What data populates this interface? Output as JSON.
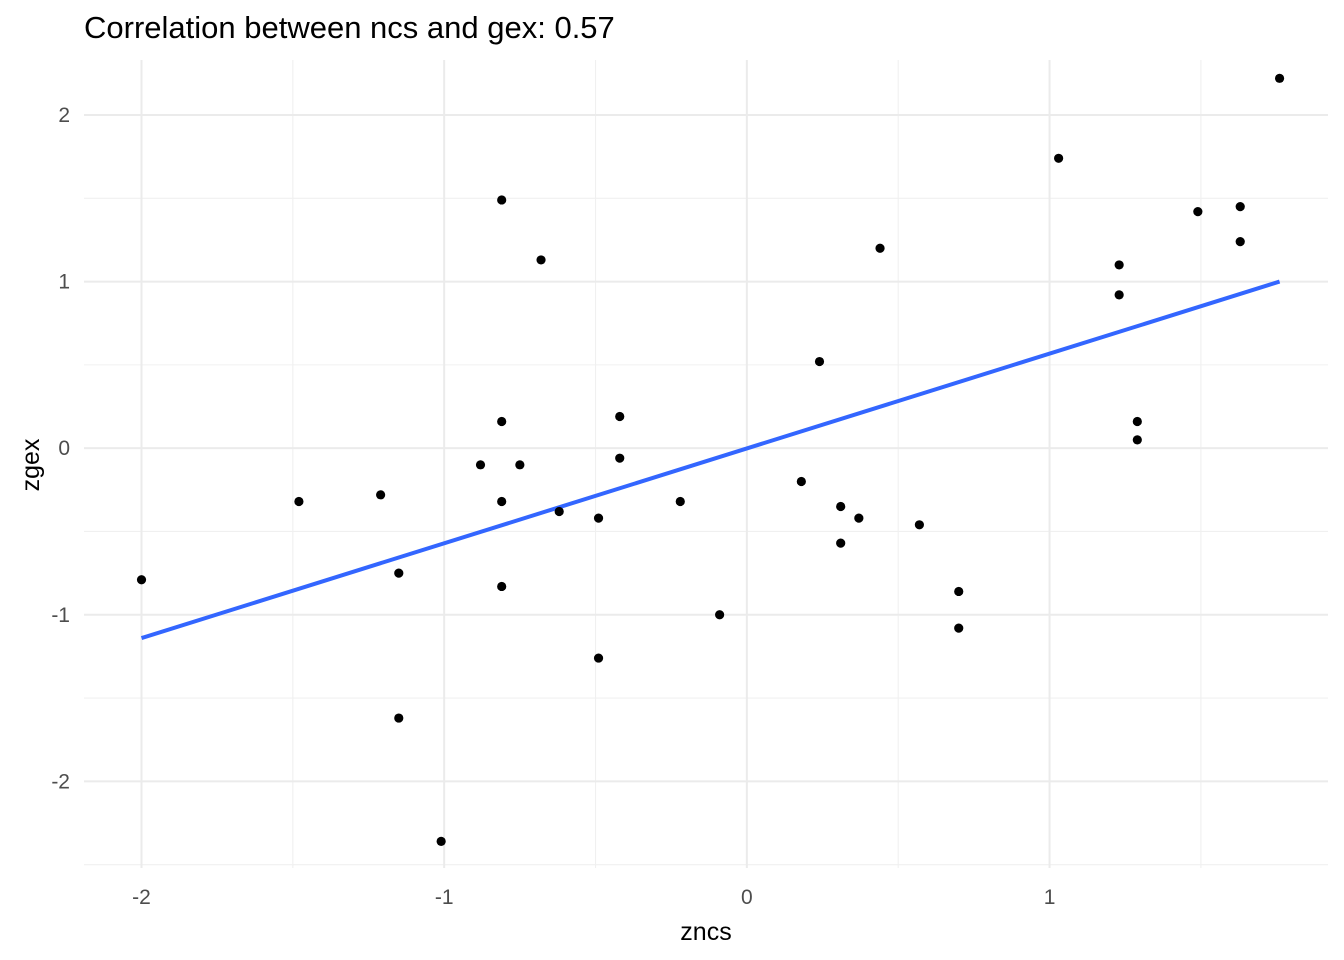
{
  "chart_data": {
    "type": "scatter",
    "title": "Correlation between ncs and gex: 0.57",
    "xlabel": "zncs",
    "ylabel": "zgex",
    "xlim": [
      -2.19,
      1.92
    ],
    "ylim": [
      -2.52,
      2.33
    ],
    "x_ticks": [
      -2,
      -1,
      0,
      1
    ],
    "x_tick_labels": [
      "-2",
      "-1",
      "0",
      "1"
    ],
    "y_ticks": [
      -2,
      -1,
      0,
      1,
      2
    ],
    "y_tick_labels": [
      "-2",
      "-1",
      "0",
      "1",
      "2"
    ],
    "grid": true,
    "point_color": "#000000",
    "points": [
      {
        "x": -2.0,
        "y": -0.79
      },
      {
        "x": -1.48,
        "y": -0.32
      },
      {
        "x": -1.21,
        "y": -0.28
      },
      {
        "x": -1.15,
        "y": -0.75
      },
      {
        "x": -1.15,
        "y": -1.62
      },
      {
        "x": -1.01,
        "y": -2.36
      },
      {
        "x": -0.88,
        "y": -0.1
      },
      {
        "x": -0.81,
        "y": 1.49
      },
      {
        "x": -0.81,
        "y": 0.16
      },
      {
        "x": -0.81,
        "y": -0.32
      },
      {
        "x": -0.81,
        "y": -0.83
      },
      {
        "x": -0.75,
        "y": -0.1
      },
      {
        "x": -0.68,
        "y": 1.13
      },
      {
        "x": -0.62,
        "y": -0.38
      },
      {
        "x": -0.49,
        "y": -0.42
      },
      {
        "x": -0.49,
        "y": -1.26
      },
      {
        "x": -0.42,
        "y": 0.19
      },
      {
        "x": -0.42,
        "y": -0.06
      },
      {
        "x": -0.22,
        "y": -0.32
      },
      {
        "x": -0.09,
        "y": -1.0
      },
      {
        "x": 0.18,
        "y": -0.2
      },
      {
        "x": 0.24,
        "y": 0.52
      },
      {
        "x": 0.31,
        "y": -0.35
      },
      {
        "x": 0.31,
        "y": -0.57
      },
      {
        "x": 0.37,
        "y": -0.42
      },
      {
        "x": 0.44,
        "y": 1.2
      },
      {
        "x": 0.57,
        "y": -0.46
      },
      {
        "x": 0.7,
        "y": -0.86
      },
      {
        "x": 0.7,
        "y": -1.08
      },
      {
        "x": 1.03,
        "y": 1.74
      },
      {
        "x": 1.23,
        "y": 1.1
      },
      {
        "x": 1.23,
        "y": 0.92
      },
      {
        "x": 1.29,
        "y": 0.16
      },
      {
        "x": 1.29,
        "y": 0.05
      },
      {
        "x": 1.49,
        "y": 1.42
      },
      {
        "x": 1.63,
        "y": 1.45
      },
      {
        "x": 1.63,
        "y": 1.24
      },
      {
        "x": 1.76,
        "y": 2.22
      }
    ],
    "fit_line": {
      "color": "#3366ff",
      "x": [
        -2.0,
        1.76
      ],
      "y": [
        -1.14,
        1.0
      ]
    }
  }
}
